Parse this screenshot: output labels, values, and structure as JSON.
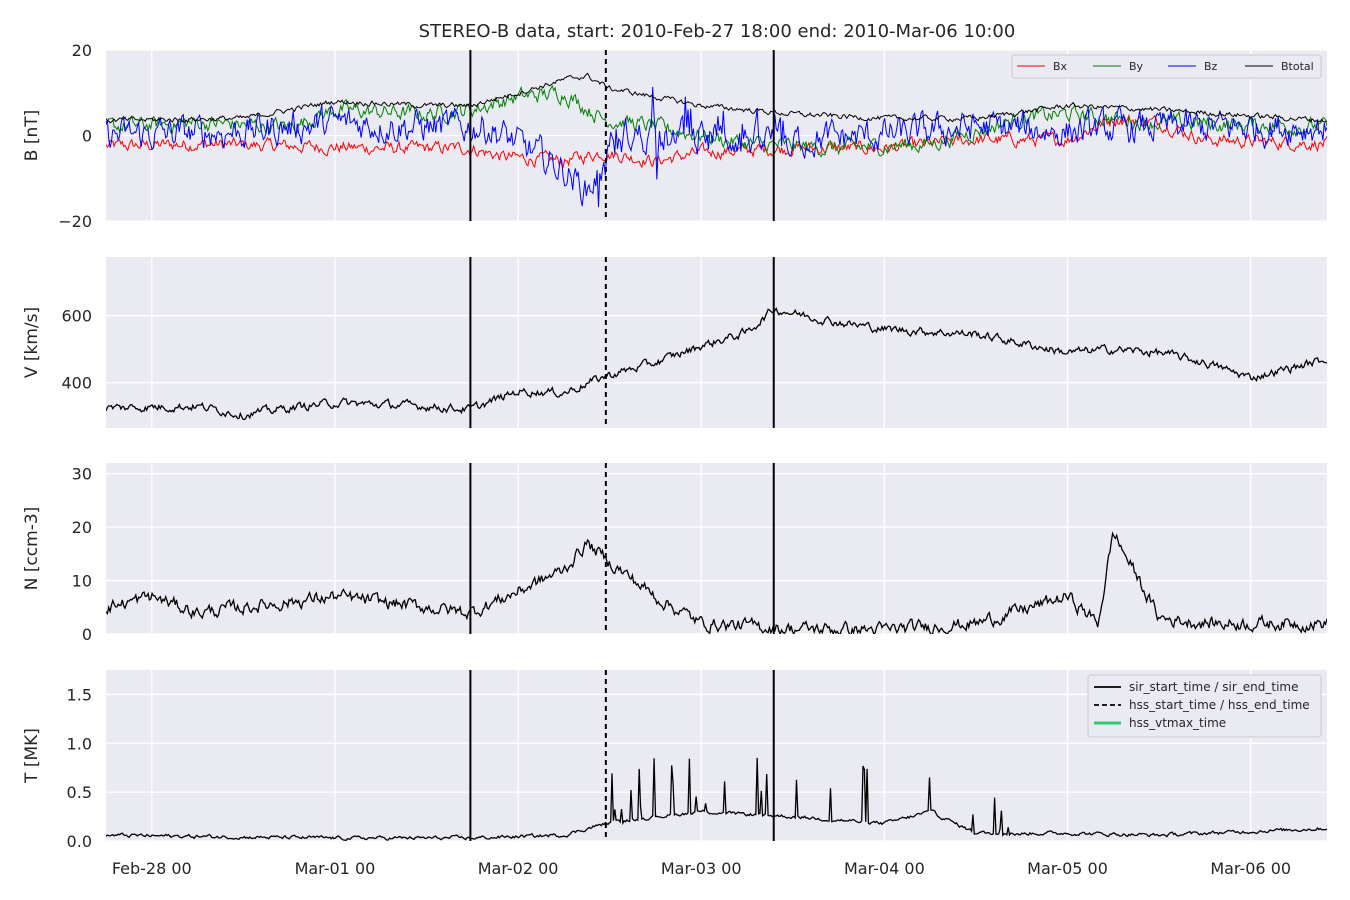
{
  "title": "STEREO-B data, start: 2010-Feb-27 18:00  end: 2010-Mar-06 10:00",
  "colors": {
    "panel_bg": "#eaeaf2",
    "grid": "#ffffff",
    "bx": "#ff0000",
    "by": "#008000",
    "bz": "#0000ff",
    "btotal": "#000000",
    "event_line": "#000000",
    "vtmax": "#2ecc71"
  },
  "x_axis": {
    "start": "2010-02-27 18:00",
    "end": "2010-03-06 10:00",
    "ticks": [
      "Feb-28 00",
      "Mar-01 00",
      "Mar-02 00",
      "Mar-03 00",
      "Mar-04 00",
      "Mar-05 00",
      "Mar-06 00"
    ]
  },
  "markers": {
    "sir_start_time": "2010-03-01 17:45",
    "hss_start_time": "2010-03-02 11:30",
    "sir_end_time": "2010-03-03 09:30"
  },
  "legend_b": [
    "Bx",
    "By",
    "Bz",
    "Btotal"
  ],
  "legend_events": [
    "sir_start_time / sir_end_time",
    "hss_start_time / hss_end_time",
    "hss_vtmax_time"
  ],
  "chart_data": [
    {
      "type": "line",
      "ylabel": "B [nT]",
      "ylim": [
        -20,
        20
      ],
      "yticks": [
        "20",
        "0",
        "−20"
      ],
      "legend_position": "top-right",
      "series": [
        {
          "name": "Bx",
          "color": "#ff0000",
          "noise": 1.2,
          "x": [
            "2010-02-27 18:00",
            "2010-02-28 06:00",
            "2010-02-28 18:00",
            "2010-03-01 06:00",
            "2010-03-01 17:45",
            "2010-03-01 22:00",
            "2010-03-02 06:00",
            "2010-03-02 11:00",
            "2010-03-02 18:00",
            "2010-03-03 00:00",
            "2010-03-03 12:00",
            "2010-03-04 00:00",
            "2010-03-04 12:00",
            "2010-03-05 00:00",
            "2010-03-05 06:00",
            "2010-03-05 12:00",
            "2010-03-05 18:00",
            "2010-03-06 10:00"
          ],
          "values": [
            -2.5,
            -2,
            -2.5,
            -3,
            -3,
            -5,
            -6,
            -4,
            -6,
            -4,
            -3,
            -3,
            -1,
            -1,
            4,
            3,
            -1,
            -2
          ]
        },
        {
          "name": "By",
          "color": "#008000",
          "noise": 1.5,
          "x": [
            "2010-02-27 18:00",
            "2010-02-28 06:00",
            "2010-02-28 18:00",
            "2010-03-01 00:00",
            "2010-03-01 12:00",
            "2010-03-01 17:45",
            "2010-03-02 00:00",
            "2010-03-02 06:00",
            "2010-03-02 11:00",
            "2010-03-02 18:00",
            "2010-03-03 06:00",
            "2010-03-03 18:00",
            "2010-03-04 06:00",
            "2010-03-04 18:00",
            "2010-03-05 00:00",
            "2010-03-05 12:00",
            "2010-03-06 10:00"
          ],
          "values": [
            2,
            3,
            2,
            6,
            5,
            6,
            9,
            10,
            4,
            2,
            -2,
            -3,
            -2,
            4,
            5,
            3,
            2
          ]
        },
        {
          "name": "Bz",
          "color": "#0000ff",
          "noise": 3.0,
          "x": [
            "2010-02-27 18:00",
            "2010-02-28 12:00",
            "2010-03-01 00:00",
            "2010-03-01 12:00",
            "2010-03-01 20:00",
            "2010-03-02 00:00",
            "2010-03-02 06:00",
            "2010-03-02 09:00",
            "2010-03-02 14:00",
            "2010-03-03 00:00",
            "2010-03-03 12:00",
            "2010-03-04 00:00",
            "2010-03-04 12:00",
            "2010-03-05 00:00",
            "2010-03-05 12:00",
            "2010-03-06 10:00"
          ],
          "values": [
            0,
            1,
            3,
            2,
            2,
            -2,
            -8,
            -13,
            0,
            0,
            -1,
            0,
            2,
            1,
            2,
            2
          ]
        },
        {
          "name": "Btotal",
          "color": "#000000",
          "noise": 0.5,
          "x": [
            "2010-02-27 18:00",
            "2010-02-28 12:00",
            "2010-03-01 00:00",
            "2010-03-01 12:00",
            "2010-03-01 17:45",
            "2010-03-02 00:00",
            "2010-03-02 06:00",
            "2010-03-02 09:00",
            "2010-03-02 12:00",
            "2010-03-02 18:00",
            "2010-03-03 00:00",
            "2010-03-03 12:00",
            "2010-03-04 00:00",
            "2010-03-04 12:00",
            "2010-03-05 00:00",
            "2010-03-05 12:00",
            "2010-03-06 10:00"
          ],
          "values": [
            3.5,
            4,
            8,
            7,
            7,
            10,
            13,
            14,
            11,
            9,
            7,
            5,
            4,
            4,
            7,
            6,
            3.5
          ]
        }
      ]
    },
    {
      "type": "line",
      "ylabel": "V [km/s]",
      "ylim": [
        265,
        775
      ],
      "yticks": [
        "400",
        "600"
      ],
      "series": [
        {
          "name": "V",
          "color": "#000000",
          "noise": 10,
          "x": [
            "2010-02-27 18:00",
            "2010-02-28 06:00",
            "2010-02-28 12:00",
            "2010-02-28 18:00",
            "2010-03-01 00:00",
            "2010-03-01 12:00",
            "2010-03-01 17:45",
            "2010-03-02 00:00",
            "2010-03-02 06:00",
            "2010-03-02 11:30",
            "2010-03-02 18:00",
            "2010-03-03 00:00",
            "2010-03-03 06:00",
            "2010-03-03 09:30",
            "2010-03-03 18:00",
            "2010-03-04 00:00",
            "2010-03-04 12:00",
            "2010-03-05 00:00",
            "2010-03-05 06:00",
            "2010-03-05 12:00",
            "2010-03-05 18:00",
            "2010-03-06 00:00",
            "2010-03-06 10:00"
          ],
          "values": [
            325,
            330,
            305,
            325,
            340,
            330,
            320,
            375,
            370,
            420,
            460,
            510,
            550,
            620,
            580,
            560,
            545,
            490,
            500,
            490,
            460,
            415,
            470
          ]
        }
      ]
    },
    {
      "type": "line",
      "ylabel": "N [ccm-3]",
      "ylim": [
        0,
        32
      ],
      "yticks": [
        "0",
        "10",
        "20",
        "30"
      ],
      "series": [
        {
          "name": "N",
          "color": "#000000",
          "noise": 1.0,
          "x": [
            "2010-02-27 18:00",
            "2010-02-28 00:00",
            "2010-02-28 06:00",
            "2010-02-28 18:00",
            "2010-03-01 00:00",
            "2010-03-01 12:00",
            "2010-03-01 17:45",
            "2010-03-02 00:00",
            "2010-03-02 06:00",
            "2010-03-02 09:00",
            "2010-03-02 11:30",
            "2010-03-02 18:00",
            "2010-03-03 00:00",
            "2010-03-03 12:00",
            "2010-03-04 00:00",
            "2010-03-04 12:00",
            "2010-03-05 00:00",
            "2010-03-05 04:00",
            "2010-03-05 06:00",
            "2010-03-05 12:00",
            "2010-03-05 18:00",
            "2010-03-06 10:00"
          ],
          "values": [
            5,
            7,
            4,
            6,
            7,
            5,
            4,
            8,
            12,
            17,
            14,
            7,
            2,
            1,
            0.8,
            2,
            7,
            2,
            19,
            3,
            2,
            2
          ]
        }
      ]
    },
    {
      "type": "line",
      "ylabel": "T [MK]",
      "ylim": [
        0,
        1.75
      ],
      "yticks": [
        "0.0",
        "0.5",
        "1.0",
        "1.5"
      ],
      "legend_position": "top-right",
      "series": [
        {
          "name": "T",
          "color": "#000000",
          "noise": 0.015,
          "x": [
            "2010-02-27 18:00",
            "2010-02-28 12:00",
            "2010-03-01 00:00",
            "2010-03-01 17:45",
            "2010-03-02 06:00",
            "2010-03-02 11:30",
            "2010-03-02 18:00",
            "2010-03-03 00:00",
            "2010-03-03 12:00",
            "2010-03-04 00:00",
            "2010-03-04 06:00",
            "2010-03-04 12:00",
            "2010-03-05 00:00",
            "2010-03-05 12:00",
            "2010-03-06 10:00"
          ],
          "values": [
            0.06,
            0.04,
            0.03,
            0.03,
            0.06,
            0.18,
            0.25,
            0.3,
            0.25,
            0.18,
            0.3,
            0.08,
            0.08,
            0.06,
            0.13
          ]
        }
      ]
    }
  ]
}
